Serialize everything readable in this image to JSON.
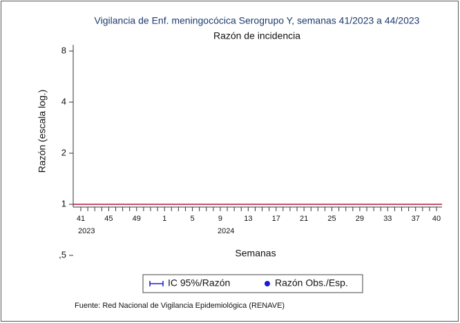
{
  "chart_data": {
    "type": "line",
    "title": "Vigilancia de Enf. meningocócica Serogrupo Y, semanas 41/2023 a 44/2023",
    "subtitle": "Razón de incidencia",
    "y_label": "Razón (escala log.)",
    "x_label": "Semanas",
    "source": "Fuente: Red Nacional de Vigilancia Epidemiológica (RENAVE)",
    "log_scale": true,
    "ylim": [
      0.5,
      8
    ],
    "yticks": [
      {
        "value": 0.5,
        "label": ",5"
      },
      1,
      2,
      4,
      8
    ],
    "reference_line": 1,
    "reference_color": "#b4123a",
    "categories": [
      "41",
      null,
      null,
      null,
      "45",
      null,
      null,
      null,
      "49",
      null,
      null,
      null,
      "1",
      null,
      null,
      null,
      "5",
      null,
      null,
      null,
      "9",
      null,
      null,
      null,
      "13",
      null,
      null,
      null,
      "17",
      null,
      null,
      null,
      "21",
      null,
      null,
      null,
      "25",
      null,
      null,
      null,
      "29",
      null,
      null,
      null,
      "33",
      null,
      null,
      null,
      "37",
      null,
      null,
      "40"
    ],
    "year_labels": {
      "41": "2023",
      "9": "2024"
    },
    "series": [
      {
        "name": "IC 95%/Razón",
        "color": "#1a1adb",
        "marker": "errorbar",
        "values": [
          null,
          null,
          null,
          null,
          null,
          null,
          null,
          null,
          null,
          null,
          null,
          null,
          null,
          null,
          null,
          null,
          null,
          null,
          null,
          null,
          null,
          null,
          null,
          null,
          null,
          null,
          null,
          null,
          null,
          null,
          null,
          null,
          null,
          null,
          null,
          null,
          null,
          null,
          null,
          null,
          null,
          null,
          null,
          null,
          null,
          null,
          null,
          null,
          null,
          null,
          null,
          null
        ]
      },
      {
        "name": "Razón Obs./Esp.",
        "color": "#1a1adb",
        "marker": "dot",
        "values": [
          null,
          null,
          null,
          null,
          null,
          null,
          null,
          null,
          null,
          null,
          null,
          null,
          null,
          null,
          null,
          null,
          null,
          null,
          null,
          null,
          null,
          null,
          null,
          null,
          null,
          null,
          null,
          null,
          null,
          null,
          null,
          null,
          null,
          null,
          null,
          null,
          null,
          null,
          null,
          null,
          null,
          null,
          null,
          null,
          null,
          null,
          null,
          null,
          null,
          null,
          null,
          null
        ]
      }
    ]
  }
}
